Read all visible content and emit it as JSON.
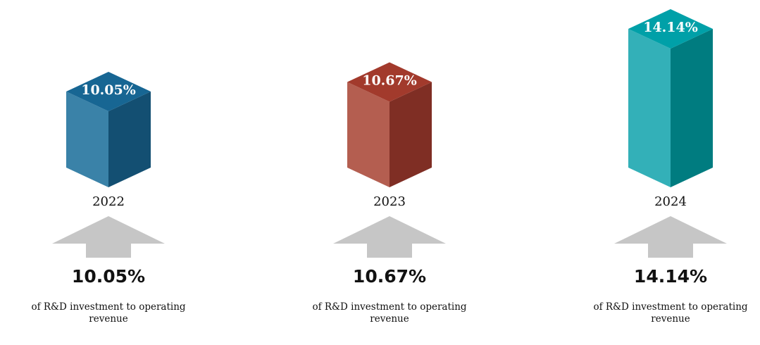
{
  "chart_data": {
    "type": "bar",
    "style": "3d-isometric-columns",
    "categories": [
      "2022",
      "2023",
      "2024"
    ],
    "values": [
      10.05,
      10.67,
      14.14
    ],
    "value_labels": [
      "10.05%",
      "10.67%",
      "14.14%"
    ],
    "unit": "%",
    "caption": "of R&D investment to operating revenue",
    "caption_lines": [
      "of R&D investment to operating",
      "revenue"
    ],
    "colors": [
      {
        "front": "#3a82a8",
        "side": "#134f72",
        "top": "#176693"
      },
      {
        "front": "#b45e50",
        "side": "#7f2e24",
        "top": "#a23a2c"
      },
      {
        "front": "#33b0b8",
        "side": "#007c80",
        "top": "#00a0a8"
      }
    ],
    "arrow_color": "#c6c6c6",
    "arrow_icon": "up-arrow-icon",
    "grid": false,
    "legend": "none"
  }
}
